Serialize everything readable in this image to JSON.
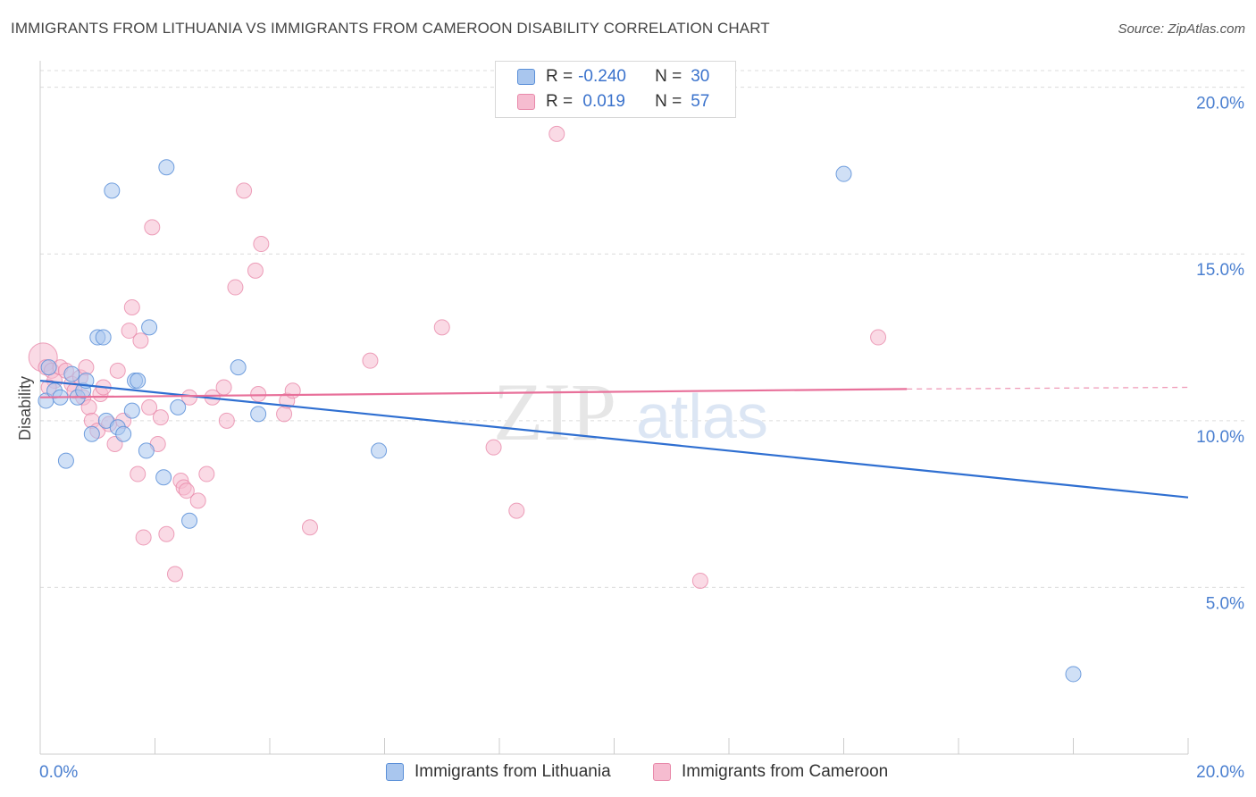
{
  "title": "IMMIGRANTS FROM LITHUANIA VS IMMIGRANTS FROM CAMEROON DISABILITY CORRELATION CHART",
  "source": "Source: ZipAtlas.com",
  "watermark": {
    "part1": "ZIP",
    "part2": "atlas"
  },
  "legend": {
    "rows": [
      {
        "r_label": "R =",
        "r_value": "-0.240",
        "n_label": "N =",
        "n_value": "30"
      },
      {
        "r_label": "R =",
        "r_value": " 0.019",
        "n_label": "N =",
        "n_value": "57"
      }
    ]
  },
  "bottom_legend": {
    "series1": "Immigrants from Lithuania",
    "series2": "Immigrants from Cameroon"
  },
  "colors": {
    "blue_fill": "#a9c6ee",
    "blue_stroke": "#5a8fd8",
    "blue_line": "#2f6fd1",
    "pink_fill": "#f6bcd0",
    "pink_stroke": "#e889aa",
    "pink_line": "#e8709a",
    "grid": "#dcdcdc",
    "tick_text": "#4a7fd0"
  },
  "chart_data": {
    "type": "scatter",
    "title": "IMMIGRANTS FROM LITHUANIA VS IMMIGRANTS FROM CAMEROON DISABILITY CORRELATION CHART",
    "xlabel": "",
    "ylabel": "Disability",
    "xlim": [
      0,
      20
    ],
    "ylim": [
      0,
      20.5
    ],
    "x_tick_labels": [
      {
        "value": 0,
        "label": "0.0%"
      },
      {
        "value": 20,
        "label": "20.0%"
      }
    ],
    "y_tick_labels": [
      {
        "value": 5,
        "label": "5.0%"
      },
      {
        "value": 10,
        "label": "10.0%"
      },
      {
        "value": 15,
        "label": "15.0%"
      },
      {
        "value": 20,
        "label": "20.0%"
      }
    ],
    "series": [
      {
        "name": "Immigrants from Lithuania",
        "color": "blue",
        "points": [
          [
            0.1,
            10.6
          ],
          [
            0.15,
            11.6
          ],
          [
            0.25,
            10.9
          ],
          [
            0.35,
            10.7
          ],
          [
            0.45,
            8.8
          ],
          [
            0.55,
            11.4
          ],
          [
            0.65,
            10.7
          ],
          [
            0.75,
            10.9
          ],
          [
            0.8,
            11.2
          ],
          [
            0.9,
            9.6
          ],
          [
            1.0,
            12.5
          ],
          [
            1.1,
            12.5
          ],
          [
            1.15,
            10.0
          ],
          [
            1.25,
            16.9
          ],
          [
            1.35,
            9.8
          ],
          [
            1.45,
            9.6
          ],
          [
            1.6,
            10.3
          ],
          [
            1.65,
            11.2
          ],
          [
            1.7,
            11.2
          ],
          [
            1.85,
            9.1
          ],
          [
            1.9,
            12.8
          ],
          [
            2.15,
            8.3
          ],
          [
            2.2,
            17.6
          ],
          [
            2.4,
            10.4
          ],
          [
            2.6,
            7.0
          ],
          [
            3.45,
            11.6
          ],
          [
            3.8,
            10.2
          ],
          [
            5.9,
            9.1
          ],
          [
            14.0,
            17.4
          ],
          [
            18.0,
            2.4
          ]
        ],
        "trend": {
          "x0": 0,
          "y0": 11.2,
          "x1": 20,
          "y1": 7.7
        }
      },
      {
        "name": "Immigrants from Cameroon",
        "color": "pink",
        "points": [
          [
            0.05,
            11.9
          ],
          [
            0.1,
            11.6
          ],
          [
            0.2,
            11.5
          ],
          [
            0.25,
            11.2
          ],
          [
            0.35,
            11.6
          ],
          [
            0.45,
            11.5
          ],
          [
            0.55,
            11.1
          ],
          [
            0.6,
            10.9
          ],
          [
            0.7,
            11.3
          ],
          [
            0.75,
            10.7
          ],
          [
            0.8,
            11.6
          ],
          [
            0.85,
            10.4
          ],
          [
            0.9,
            10.0
          ],
          [
            1.0,
            9.7
          ],
          [
            1.05,
            10.8
          ],
          [
            1.1,
            11.0
          ],
          [
            1.2,
            9.9
          ],
          [
            1.3,
            9.3
          ],
          [
            1.35,
            11.5
          ],
          [
            1.45,
            10.0
          ],
          [
            1.55,
            12.7
          ],
          [
            1.6,
            13.4
          ],
          [
            1.7,
            8.4
          ],
          [
            1.75,
            12.4
          ],
          [
            1.8,
            6.5
          ],
          [
            1.9,
            10.4
          ],
          [
            1.95,
            15.8
          ],
          [
            2.05,
            9.3
          ],
          [
            2.1,
            10.1
          ],
          [
            2.2,
            6.6
          ],
          [
            2.35,
            5.4
          ],
          [
            2.45,
            8.2
          ],
          [
            2.5,
            8.0
          ],
          [
            2.55,
            7.9
          ],
          [
            2.6,
            10.7
          ],
          [
            2.75,
            7.6
          ],
          [
            2.9,
            8.4
          ],
          [
            3.0,
            10.7
          ],
          [
            3.2,
            11.0
          ],
          [
            3.25,
            10.0
          ],
          [
            3.4,
            14.0
          ],
          [
            3.55,
            16.9
          ],
          [
            3.75,
            14.5
          ],
          [
            3.8,
            10.8
          ],
          [
            3.85,
            15.3
          ],
          [
            4.25,
            10.2
          ],
          [
            4.3,
            10.6
          ],
          [
            4.4,
            10.9
          ],
          [
            4.7,
            6.8
          ],
          [
            5.75,
            11.8
          ],
          [
            7.0,
            12.8
          ],
          [
            7.9,
            9.2
          ],
          [
            8.3,
            7.3
          ],
          [
            9.0,
            18.6
          ],
          [
            11.5,
            5.2
          ],
          [
            14.6,
            12.5
          ],
          [
            0.15,
            11.0
          ]
        ],
        "trend": {
          "x0": 0,
          "y0": 10.7,
          "x1": 15.1,
          "y1": 10.95
        },
        "trend_dashed_to": {
          "x": 20,
          "y": 11.0
        }
      }
    ]
  }
}
